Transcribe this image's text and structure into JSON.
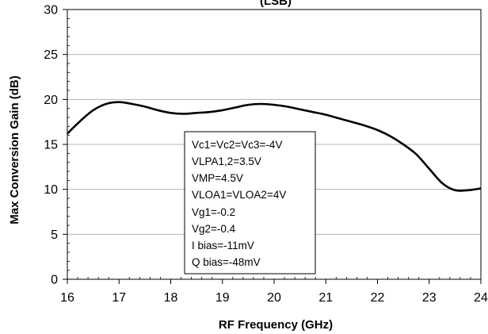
{
  "chart_data": {
    "type": "line",
    "title": "(LSB)",
    "xlabel": "RF Frequency (GHz)",
    "ylabel": "Max Conversion Gain (dB)",
    "xlim": [
      16,
      24
    ],
    "ylim": [
      0,
      30
    ],
    "x_ticks": [
      "16",
      "17",
      "18",
      "19",
      "20",
      "21",
      "22",
      "23",
      "24"
    ],
    "y_ticks": [
      "0",
      "5",
      "10",
      "15",
      "20",
      "25",
      "30"
    ],
    "grid": "horizontal",
    "legend": "none",
    "line_color": "#000000",
    "series": [
      {
        "x": [
          16.0,
          16.25,
          16.5,
          16.75,
          17.0,
          17.25,
          17.5,
          17.75,
          18.0,
          18.25,
          18.5,
          18.75,
          19.0,
          19.25,
          19.5,
          19.75,
          20.0,
          20.25,
          20.5,
          20.75,
          21.0,
          21.25,
          21.5,
          21.75,
          22.0,
          22.25,
          22.5,
          22.75,
          23.0,
          23.25,
          23.5,
          23.75,
          24.0
        ],
        "y": [
          16.2,
          17.6,
          18.8,
          19.5,
          19.7,
          19.5,
          19.2,
          18.8,
          18.5,
          18.4,
          18.5,
          18.6,
          18.8,
          19.1,
          19.4,
          19.5,
          19.4,
          19.2,
          18.9,
          18.6,
          18.3,
          17.9,
          17.5,
          17.1,
          16.6,
          15.9,
          15.0,
          13.9,
          12.3,
          10.7,
          9.9,
          9.9,
          10.1
        ]
      }
    ]
  },
  "annotation": {
    "lines": [
      "Vc1=Vc2=Vc3=-4V",
      "VLPA1,2=3.5V",
      "VMP=4.5V",
      "VLOA1=VLOA2=4V",
      "Vg1=-0.2",
      "Vg2=-0.4",
      "I bias=-11mV",
      "Q bias=-48mV"
    ]
  }
}
